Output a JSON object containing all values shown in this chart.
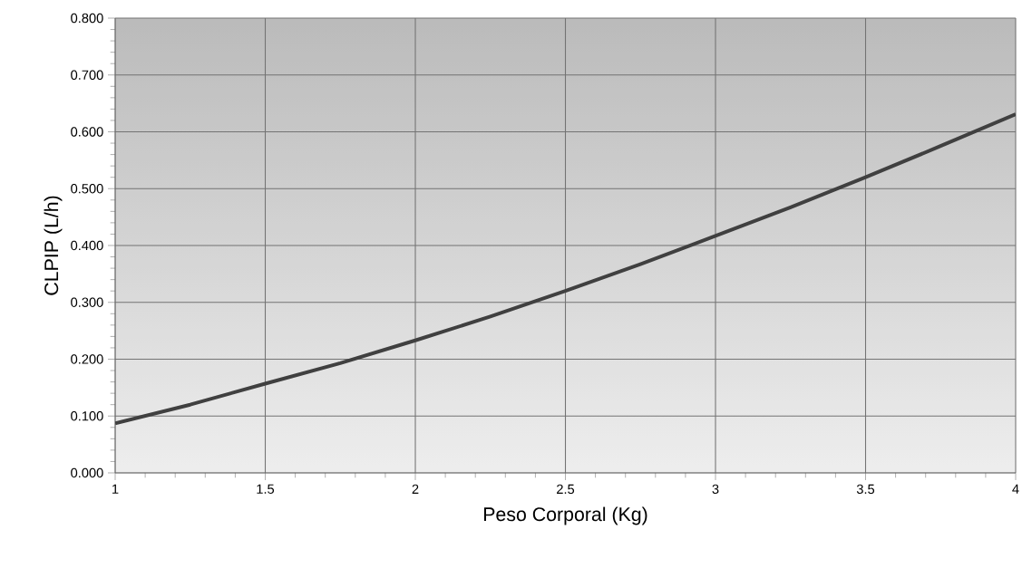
{
  "chart_data": {
    "type": "line",
    "xlabel": "Peso Corporal (Kg)",
    "ylabel": "CLPIP (L/h)",
    "x": [
      1,
      1.25,
      1.5,
      1.75,
      2,
      2.25,
      2.5,
      2.75,
      3,
      3.25,
      3.5,
      3.75,
      4
    ],
    "series": [
      {
        "color": "#404040",
        "values": [
          0.087,
          0.12,
          0.157,
          0.193,
          0.233,
          0.275,
          0.32,
          0.367,
          0.417,
          0.467,
          0.52,
          0.575,
          0.631
        ]
      }
    ],
    "xlim": [
      1,
      4
    ],
    "ylim": [
      0,
      0.8
    ],
    "xticks": [
      1,
      1.5,
      2,
      2.5,
      3,
      3.5,
      4
    ],
    "yticks": [
      {
        "value": 0,
        "label": "0.000"
      },
      {
        "value": 0.1,
        "label": "0.100"
      },
      {
        "value": 0.2,
        "label": "0.200"
      },
      {
        "value": 0.3,
        "label": "0.300"
      },
      {
        "value": 0.4,
        "label": "0.400"
      },
      {
        "value": 0.5,
        "label": "0.500"
      },
      {
        "value": 0.6,
        "label": "0.600"
      },
      {
        "value": 0.7,
        "label": "0.700"
      },
      {
        "value": 0.8,
        "label": "0.800"
      }
    ],
    "grid": true,
    "marker": "none",
    "line_style": "solid"
  }
}
